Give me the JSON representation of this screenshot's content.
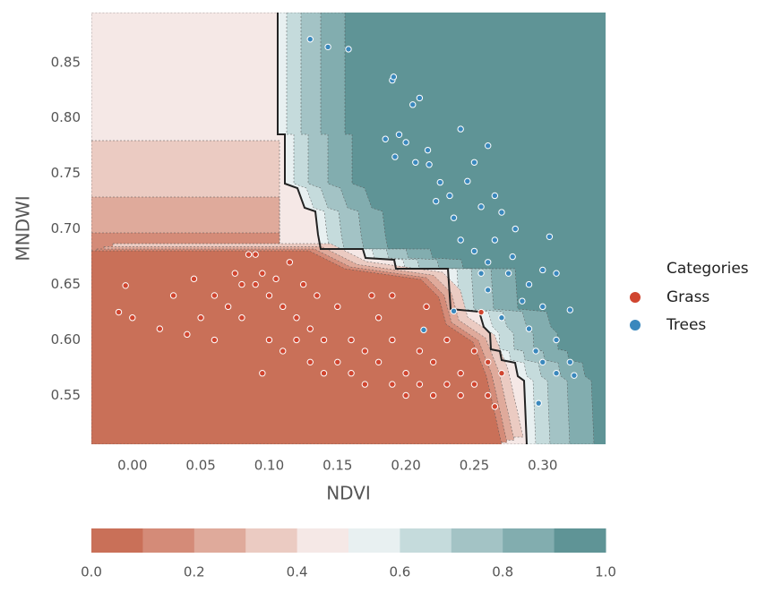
{
  "chart_data": {
    "type": "scatter",
    "x_label": "NDVI",
    "y_label": "MNDWI",
    "xlim": [
      -0.03,
      0.346
    ],
    "ylim": [
      0.506,
      0.895
    ],
    "xticks": [
      {
        "value": 0,
        "label": "0.00"
      },
      0.05,
      {
        "value": 0.1,
        "label": "0.10"
      },
      0.15,
      {
        "value": 0.2,
        "label": "0.20"
      },
      0.25,
      {
        "value": 0.3,
        "label": "0.30"
      }
    ],
    "yticks": [
      0.55,
      {
        "value": 0.6,
        "label": "0.60"
      },
      0.65,
      {
        "value": 0.7,
        "label": "0.70"
      },
      0.75,
      {
        "value": 0.8,
        "label": "0.80"
      },
      0.85
    ],
    "legend_title": "Categories",
    "legend_position": "right",
    "series": [
      {
        "name": "Grass",
        "color": "#d0452f",
        "x": [
          -0.005,
          -0.01,
          0.0,
          0.02,
          0.04,
          0.05,
          0.06,
          0.07,
          0.08,
          0.085,
          0.09,
          0.09,
          0.1,
          0.1,
          0.11,
          0.11,
          0.12,
          0.12,
          0.13,
          0.13,
          0.14,
          0.14,
          0.15,
          0.15,
          0.16,
          0.16,
          0.17,
          0.17,
          0.18,
          0.18,
          0.19,
          0.19,
          0.2,
          0.2,
          0.21,
          0.21,
          0.22,
          0.22,
          0.23,
          0.23,
          0.24,
          0.24,
          0.25,
          0.25,
          0.26,
          0.26,
          0.27,
          0.08,
          0.095,
          0.105,
          0.06,
          0.075,
          0.03,
          0.045,
          0.115,
          0.125,
          0.135,
          0.175,
          0.19,
          0.215,
          0.255,
          0.095,
          0.265
        ],
        "values": [
          0.649,
          0.625,
          0.62,
          0.61,
          0.605,
          0.62,
          0.6,
          0.63,
          0.62,
          0.677,
          0.677,
          0.65,
          0.64,
          0.6,
          0.63,
          0.59,
          0.6,
          0.62,
          0.58,
          0.61,
          0.6,
          0.57,
          0.58,
          0.63,
          0.57,
          0.6,
          0.56,
          0.59,
          0.58,
          0.62,
          0.56,
          0.6,
          0.57,
          0.55,
          0.56,
          0.59,
          0.55,
          0.58,
          0.56,
          0.6,
          0.55,
          0.57,
          0.56,
          0.59,
          0.55,
          0.58,
          0.57,
          0.65,
          0.66,
          0.655,
          0.64,
          0.66,
          0.64,
          0.655,
          0.67,
          0.65,
          0.64,
          0.64,
          0.64,
          0.63,
          0.625,
          0.57,
          0.54
        ]
      },
      {
        "name": "Trees",
        "color": "#3a88bd",
        "x": [
          0.13,
          0.143,
          0.158,
          0.19,
          0.191,
          0.205,
          0.21,
          0.185,
          0.195,
          0.2,
          0.216,
          0.192,
          0.207,
          0.217,
          0.24,
          0.25,
          0.26,
          0.225,
          0.232,
          0.245,
          0.222,
          0.235,
          0.255,
          0.265,
          0.27,
          0.28,
          0.24,
          0.25,
          0.26,
          0.275,
          0.29,
          0.3,
          0.31,
          0.26,
          0.285,
          0.3,
          0.32,
          0.27,
          0.29,
          0.31,
          0.295,
          0.32,
          0.3,
          0.31,
          0.323,
          0.297,
          0.213,
          0.235,
          0.305,
          0.255,
          0.265,
          0.278
        ],
        "values": [
          0.871,
          0.864,
          0.862,
          0.834,
          0.837,
          0.812,
          0.818,
          0.781,
          0.785,
          0.778,
          0.771,
          0.765,
          0.76,
          0.758,
          0.79,
          0.76,
          0.775,
          0.742,
          0.73,
          0.743,
          0.725,
          0.71,
          0.72,
          0.73,
          0.715,
          0.7,
          0.69,
          0.68,
          0.67,
          0.66,
          0.65,
          0.663,
          0.66,
          0.645,
          0.635,
          0.63,
          0.627,
          0.62,
          0.61,
          0.6,
          0.59,
          0.58,
          0.58,
          0.57,
          0.568,
          0.543,
          0.609,
          0.626,
          0.693,
          0.66,
          0.69,
          0.675
        ]
      }
    ],
    "colorbar": {
      "levels": [
        0,
        0.1,
        0.2,
        0.3,
        0.4,
        0.5,
        0.6,
        0.7,
        0.8,
        0.9,
        1
      ],
      "colors": [
        "#c97058",
        "#d48b78",
        "#dfaa9b",
        "#ebcbc2",
        "#f5e8e6",
        "#e8f0f1",
        "#c5dbdc",
        "#a3c3c5",
        "#82adaf",
        "#5f9496"
      ],
      "ticks": [
        {
          "value": 0,
          "label": "0.0"
        },
        0.2,
        0.4,
        0.6,
        0.8,
        {
          "value": 1,
          "label": "1.0"
        }
      ]
    }
  }
}
